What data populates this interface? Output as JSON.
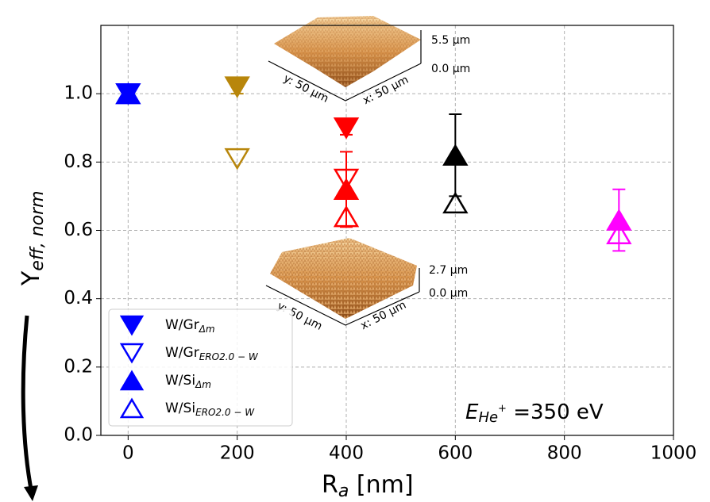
{
  "chart_data": {
    "type": "scatter",
    "xlabel": "R",
    "xlabel_sub": "a",
    "xlabel_unit": " [nm]",
    "ylabel": "Y",
    "ylabel_sub": "eff, norm",
    "annotation": {
      "base": "E",
      "sub": "He",
      "sup": "+",
      "text": " =350 eV"
    },
    "xlim": [
      -50,
      1000
    ],
    "ylim": [
      0,
      1.2
    ],
    "xticks": [
      0,
      200,
      400,
      600,
      800,
      1000
    ],
    "yticks": [
      {
        "value": 0,
        "label": "0.0"
      },
      0.2,
      0.4,
      0.6,
      0.8,
      {
        "value": 1,
        "label": "1.0"
      }
    ],
    "grid": true,
    "legend": "lower left",
    "series": [
      {
        "name": "W/Gr",
        "name_sub": "Δm",
        "marker": "v",
        "filled": true,
        "color": "#0000ff",
        "x": [
          0,
          200,
          400
        ],
        "values": [
          1.0,
          1.02,
          0.9
        ],
        "errors": [
          0.02,
          0.02,
          0.02
        ],
        "colors": [
          "#0000ff",
          "#b8860b",
          "#ff0000"
        ]
      },
      {
        "name": "W/Gr",
        "name_sub": "ERO2.0 − W",
        "marker": "v",
        "filled": false,
        "color": "#0000ff",
        "x": [
          200,
          400
        ],
        "values": [
          0.81,
          0.75
        ],
        "errors": [
          null,
          null
        ],
        "colors": [
          "#b8860b",
          "#ff0000"
        ]
      },
      {
        "name": "W/Si",
        "name_sub": "Δm",
        "marker": "^",
        "filled": true,
        "color": "#0000ff",
        "x": [
          0,
          400,
          600,
          900
        ],
        "values": [
          1.0,
          0.72,
          0.82,
          0.63
        ],
        "errors": [
          0.02,
          0.11,
          0.12,
          0.09
        ],
        "colors": [
          "#0000ff",
          "#ff0000",
          "#000000",
          "#ff00ff"
        ]
      },
      {
        "name": "W/Si",
        "name_sub": "ERO2.0 − W",
        "marker": "^",
        "filled": false,
        "color": "#0000ff",
        "x": [
          400,
          600,
          900
        ],
        "values": [
          0.64,
          0.68,
          0.59
        ],
        "errors": [
          null,
          null,
          null
        ],
        "colors": [
          "#ff0000",
          "#000000",
          "#ff00ff"
        ]
      }
    ]
  },
  "insets": [
    {
      "z_max": "5.5 µm",
      "z_min": "0.0 µm",
      "y_axis": "y: 50 µm",
      "x_axis": "x: 50 µm"
    },
    {
      "z_max": "2.7 µm",
      "z_min": "0.0 µm",
      "y_axis": "y: 50 µm",
      "x_axis": "x: 50 µm"
    }
  ]
}
